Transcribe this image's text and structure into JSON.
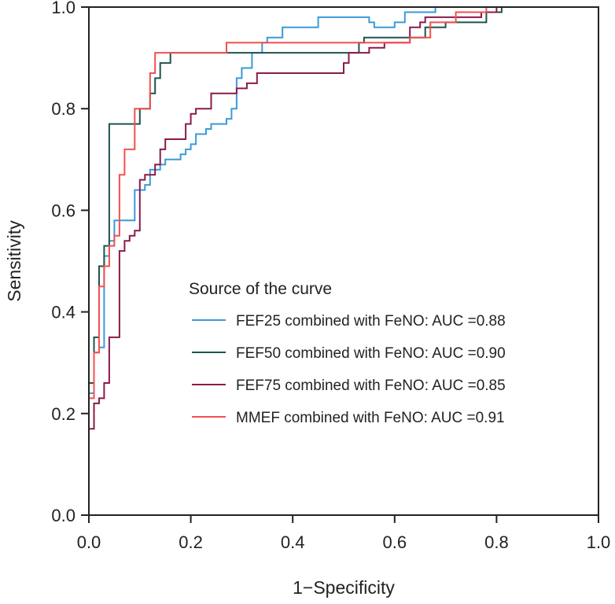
{
  "chart_data": {
    "type": "line",
    "title": "",
    "xlabel": "1−Specificity",
    "ylabel": "Sensitivity",
    "xlim": [
      0,
      1
    ],
    "ylim": [
      0,
      1
    ],
    "xticks": [
      "0.0",
      "0.2",
      "0.4",
      "0.6",
      "0.8",
      "1.0"
    ],
    "yticks": [
      "0.0",
      "0.2",
      "0.4",
      "0.6",
      "0.8",
      "1.0"
    ],
    "grid": false,
    "legend": {
      "title": "Source of the curve",
      "placement": "center-right"
    },
    "series": [
      {
        "name": "FEF25 combined with FeNO: AUC =0.88",
        "color": "#3a9ad9",
        "x": [
          0,
          0,
          0.01,
          0.01,
          0.02,
          0.02,
          0.03,
          0.03,
          0.04,
          0.04,
          0.05,
          0.05,
          0.09,
          0.09,
          0.11,
          0.11,
          0.12,
          0.12,
          0.14,
          0.14,
          0.15,
          0.15,
          0.18,
          0.18,
          0.19,
          0.19,
          0.2,
          0.2,
          0.21,
          0.21,
          0.23,
          0.23,
          0.24,
          0.24,
          0.27,
          0.27,
          0.28,
          0.28,
          0.29,
          0.29,
          0.3,
          0.3,
          0.32,
          0.32,
          0.34,
          0.34,
          0.35,
          0.35,
          0.38,
          0.38,
          0.45,
          0.45,
          0.55,
          0.55,
          0.56,
          0.56,
          0.6,
          0.6,
          0.62,
          0.62,
          0.68,
          0.68,
          0.8,
          0.8,
          1.0
        ],
        "y": [
          0,
          0.24,
          0.24,
          0.32,
          0.32,
          0.33,
          0.33,
          0.51,
          0.51,
          0.54,
          0.54,
          0.58,
          0.58,
          0.64,
          0.64,
          0.65,
          0.65,
          0.68,
          0.68,
          0.69,
          0.69,
          0.7,
          0.7,
          0.71,
          0.71,
          0.72,
          0.72,
          0.73,
          0.73,
          0.75,
          0.75,
          0.76,
          0.76,
          0.77,
          0.77,
          0.78,
          0.78,
          0.8,
          0.8,
          0.86,
          0.86,
          0.88,
          0.88,
          0.91,
          0.91,
          0.93,
          0.93,
          0.94,
          0.94,
          0.96,
          0.96,
          0.98,
          0.98,
          0.97,
          0.97,
          0.96,
          0.96,
          0.97,
          0.97,
          0.99,
          0.99,
          1.0,
          1.0,
          1.0,
          1.0
        ]
      },
      {
        "name": "FEF50 combined with FeNO: AUC =0.90",
        "color": "#1d5450",
        "x": [
          0,
          0,
          0.01,
          0.01,
          0.02,
          0.02,
          0.03,
          0.03,
          0.04,
          0.04,
          0.1,
          0.1,
          0.12,
          0.12,
          0.13,
          0.13,
          0.14,
          0.14,
          0.16,
          0.16,
          0.22,
          0.22,
          0.53,
          0.53,
          0.54,
          0.54,
          0.57,
          0.57,
          0.66,
          0.66,
          0.7,
          0.7,
          0.78,
          0.78,
          0.81,
          0.81,
          1.0
        ],
        "y": [
          0,
          0.26,
          0.26,
          0.35,
          0.35,
          0.49,
          0.49,
          0.53,
          0.53,
          0.77,
          0.77,
          0.8,
          0.8,
          0.83,
          0.83,
          0.86,
          0.86,
          0.89,
          0.89,
          0.91,
          0.91,
          0.91,
          0.91,
          0.93,
          0.93,
          0.94,
          0.94,
          0.94,
          0.94,
          0.96,
          0.96,
          0.97,
          0.97,
          0.99,
          0.99,
          1.0,
          1.0
        ]
      },
      {
        "name": "FEF75 combined with FeNO: AUC =0.85",
        "color": "#8b1a4a",
        "x": [
          0,
          0,
          0.01,
          0.01,
          0.02,
          0.02,
          0.03,
          0.03,
          0.04,
          0.04,
          0.06,
          0.06,
          0.07,
          0.07,
          0.08,
          0.08,
          0.09,
          0.09,
          0.1,
          0.1,
          0.11,
          0.11,
          0.13,
          0.13,
          0.14,
          0.14,
          0.15,
          0.15,
          0.19,
          0.19,
          0.2,
          0.2,
          0.21,
          0.21,
          0.24,
          0.24,
          0.25,
          0.25,
          0.29,
          0.29,
          0.31,
          0.31,
          0.33,
          0.33,
          0.36,
          0.36,
          0.5,
          0.5,
          0.51,
          0.51,
          0.55,
          0.55,
          0.58,
          0.58,
          0.63,
          0.63,
          0.65,
          0.65,
          0.66,
          0.66,
          0.77,
          0.77,
          0.8,
          0.8,
          1.0
        ],
        "y": [
          0,
          0.17,
          0.17,
          0.22,
          0.22,
          0.23,
          0.23,
          0.26,
          0.26,
          0.35,
          0.35,
          0.52,
          0.52,
          0.54,
          0.54,
          0.55,
          0.55,
          0.56,
          0.56,
          0.66,
          0.66,
          0.67,
          0.67,
          0.69,
          0.69,
          0.72,
          0.72,
          0.74,
          0.74,
          0.77,
          0.77,
          0.79,
          0.79,
          0.8,
          0.8,
          0.83,
          0.83,
          0.83,
          0.83,
          0.84,
          0.84,
          0.85,
          0.85,
          0.87,
          0.87,
          0.87,
          0.87,
          0.89,
          0.89,
          0.91,
          0.91,
          0.92,
          0.92,
          0.93,
          0.93,
          0.96,
          0.96,
          0.97,
          0.97,
          0.98,
          0.98,
          0.99,
          0.99,
          1.0,
          1.0
        ]
      },
      {
        "name": "MMEF combined with FeNO: AUC =0.91",
        "color": "#f25050",
        "x": [
          0,
          0,
          0.01,
          0.01,
          0.02,
          0.02,
          0.03,
          0.03,
          0.04,
          0.04,
          0.05,
          0.05,
          0.06,
          0.06,
          0.07,
          0.07,
          0.09,
          0.09,
          0.12,
          0.12,
          0.13,
          0.13,
          0.27,
          0.27,
          0.35,
          0.35,
          0.63,
          0.63,
          0.67,
          0.67,
          0.72,
          0.72,
          0.78,
          0.78,
          1.0
        ],
        "y": [
          0,
          0.23,
          0.23,
          0.32,
          0.32,
          0.45,
          0.45,
          0.49,
          0.49,
          0.53,
          0.53,
          0.55,
          0.55,
          0.67,
          0.67,
          0.72,
          0.72,
          0.8,
          0.8,
          0.87,
          0.87,
          0.91,
          0.91,
          0.93,
          0.93,
          0.93,
          0.93,
          0.94,
          0.94,
          0.97,
          0.97,
          0.99,
          0.99,
          1.0,
          1.0
        ]
      }
    ]
  }
}
